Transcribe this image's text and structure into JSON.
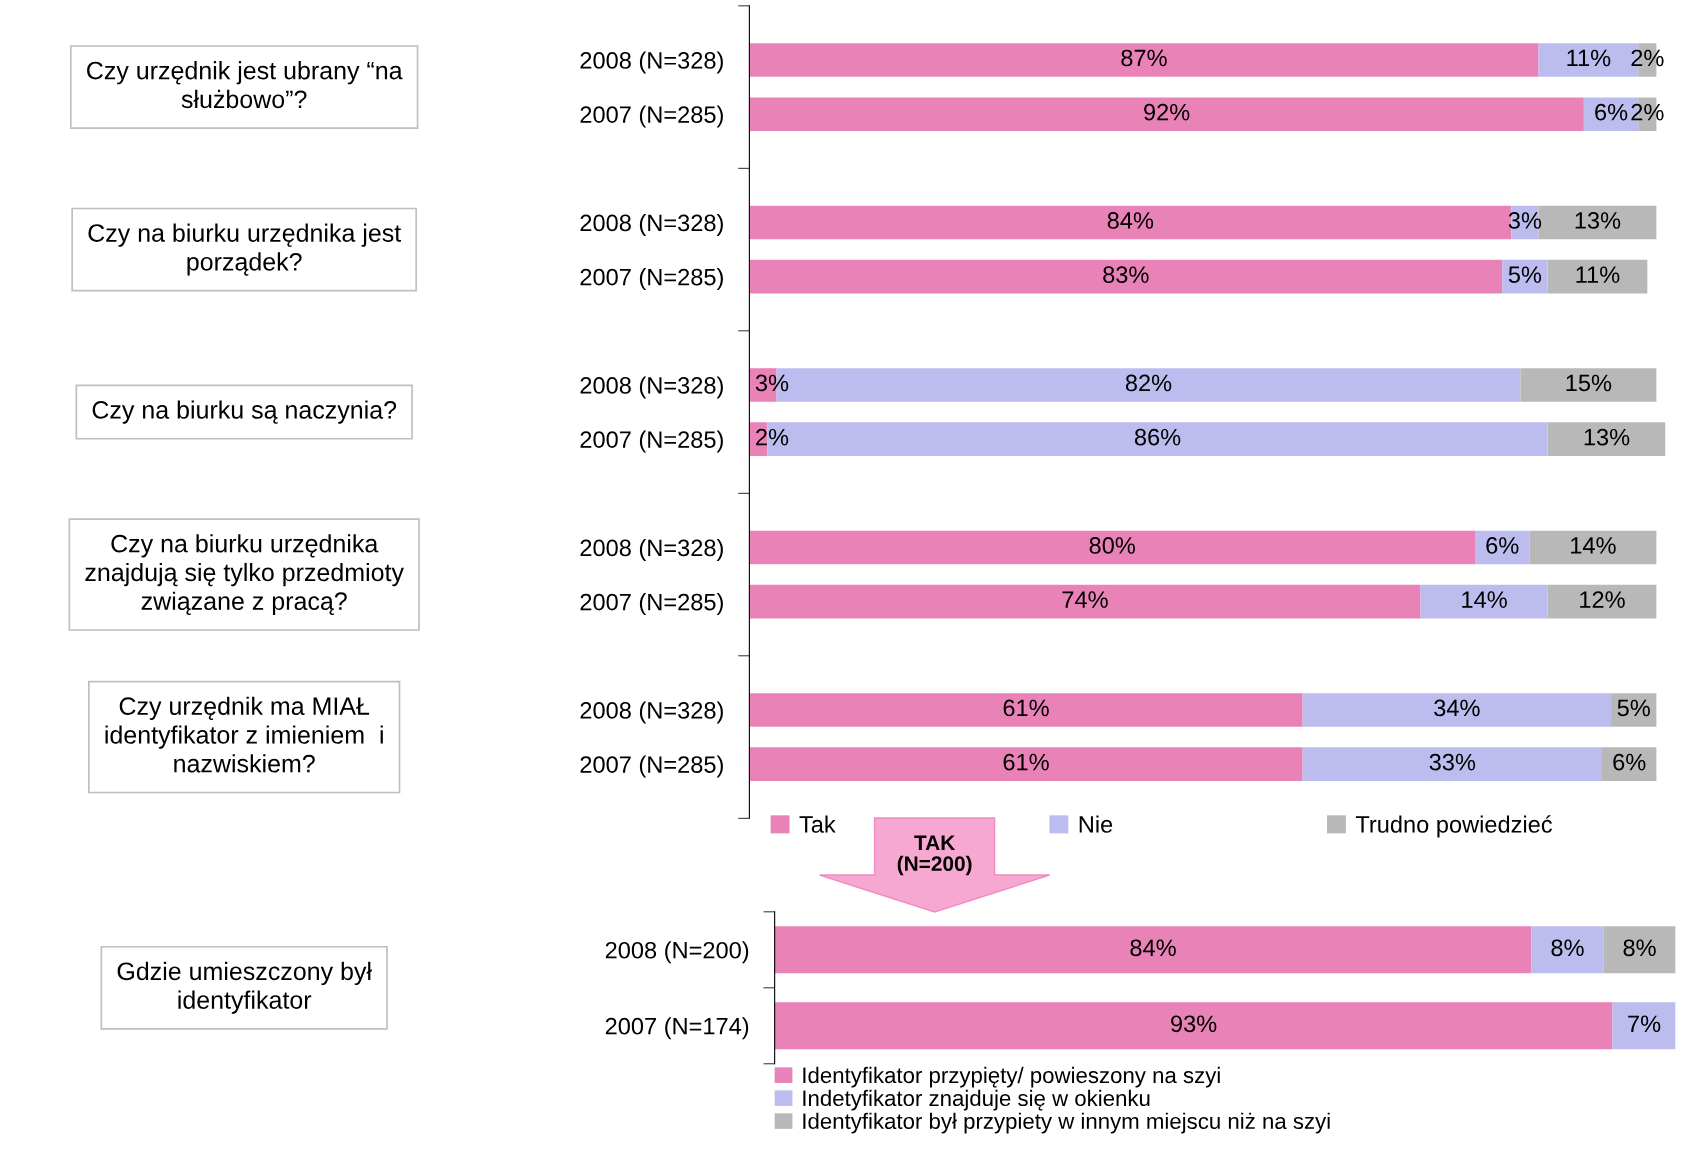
{
  "chart_data": [
    {
      "type": "bar",
      "orientation": "horizontal",
      "stacked": true,
      "legend": "bottom",
      "tick_labels": "y",
      "grid": false,
      "categories": [
        "2008 (N=328)",
        "2007 (N=285)",
        "2008 (N=328)",
        "2007 (N=285)",
        "2008 (N=328)",
        "2007 (N=285)",
        "2008 (N=328)",
        "2007 (N=285)",
        "2008 (N=328)",
        "2007 (N=285)"
      ],
      "series": [
        {
          "name": "Tak",
          "color": "#e982b6",
          "values": [
            87,
            92,
            84,
            83,
            3,
            2,
            80,
            74,
            61,
            61
          ],
          "value_labels": [
            "87%",
            "92%",
            "84%",
            "83%",
            "3%",
            "2%",
            "80%",
            "74%",
            "61%",
            "61%"
          ]
        },
        {
          "name": "Nie",
          "color": "#bcbcee",
          "values": [
            11,
            6,
            3,
            5,
            82,
            86,
            6,
            14,
            34,
            33
          ],
          "value_labels": [
            "11%",
            "6%",
            "3%",
            "5%",
            "82%",
            "86%",
            "6%",
            "14%",
            "34%",
            "33%"
          ]
        },
        {
          "name": "Trudno powiedzieć",
          "color": "#b8b8b8",
          "values": [
            2,
            2,
            13,
            11,
            15,
            13,
            14,
            12,
            5,
            6
          ],
          "value_labels": [
            "2%",
            "2%",
            "13%",
            "11%",
            "15%",
            "13%",
            "14%",
            "12%",
            "5%",
            "6%"
          ]
        }
      ],
      "annotations": [
        "Czy urzędnik jest ubrany “na\nsłużbowo”?",
        "Czy na biurku urzędnika jest\nporządek?",
        "Czy na biurku są naczynia?",
        "Czy na biurku urzędnika\nznajdują się tylko przedmioty\nzwiązane z pracą?",
        "Czy urzędnik ma MIAŁ\nidentyfikator z imieniem  i\nnazwiskiem?"
      ]
    },
    {
      "type": "bar",
      "orientation": "horizontal",
      "stacked": true,
      "legend": "bottom",
      "tick_labels": "y",
      "grid": false,
      "categories": [
        "2008 (N=200)",
        "2007 (N=174)"
      ],
      "series": [
        {
          "name": "Identyfikator przypięty/ powieszony na szyi",
          "color": "#e982b6",
          "values": [
            84,
            93
          ],
          "value_labels": [
            "84%",
            "93%"
          ]
        },
        {
          "name": "Indetyfikator znajduje się w okienku",
          "color": "#bcbcee",
          "values": [
            8,
            7
          ],
          "value_labels": [
            "8%",
            "7%"
          ]
        },
        {
          "name": "Identyfikator był przypiety w innym miejscu niż na szyi",
          "color": "#b8b8b8",
          "values": [
            8,
            null
          ],
          "value_labels": [
            "8%",
            null
          ]
        }
      ],
      "annotations": [
        "Gdzie umieszczony był\nidentyfikator",
        "TAK\n(N=200)"
      ]
    }
  ]
}
